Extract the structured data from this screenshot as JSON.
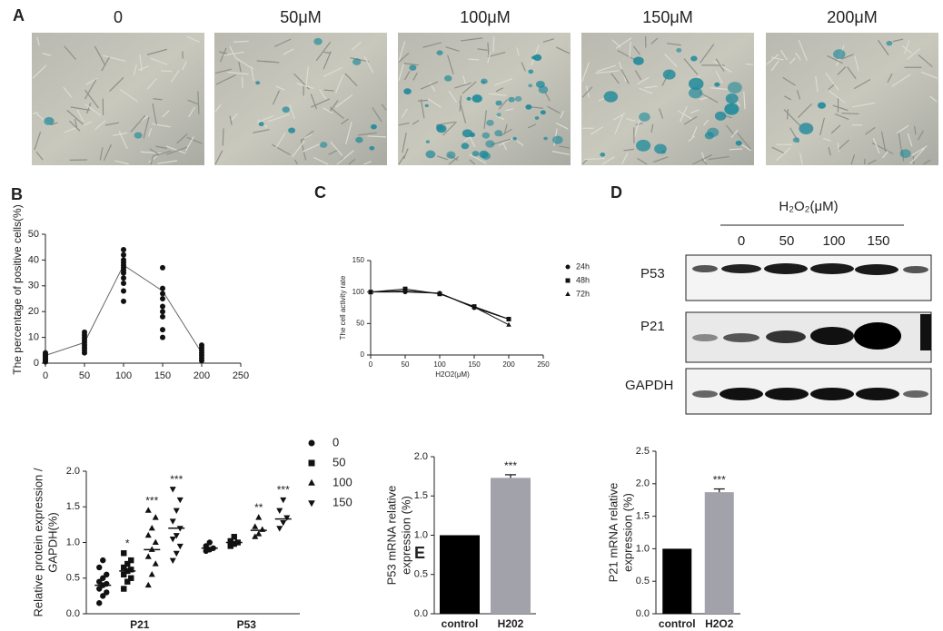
{
  "panel_letters": [
    "A",
    "B",
    "C",
    "D",
    "E"
  ],
  "micrographs": {
    "labels": [
      "0",
      "50μM",
      "100μM",
      "150μM",
      "200μM"
    ]
  },
  "western_blot": {
    "title": "H₂O₂(μM)",
    "lanes": [
      "0",
      "50",
      "100",
      "150"
    ],
    "rows": [
      "P53",
      "P21",
      "GAPDH"
    ]
  },
  "chart_data": [
    {
      "type": "scatter",
      "ylabel": "The percentage of positive cells(%)",
      "xlim": [
        0,
        250
      ],
      "ylim": [
        0,
        50
      ],
      "xticks": [
        0,
        50,
        100,
        150,
        200,
        250
      ],
      "yticks": [
        0,
        10,
        20,
        30,
        40,
        50
      ],
      "color": "#111111",
      "x": [
        0,
        0,
        0,
        0,
        0,
        0,
        0,
        0,
        50,
        50,
        50,
        50,
        50,
        50,
        50,
        50,
        50,
        100,
        100,
        100,
        100,
        100,
        100,
        100,
        100,
        100,
        100,
        100,
        100,
        150,
        150,
        150,
        150,
        150,
        150,
        150,
        150,
        150,
        200,
        200,
        200,
        200,
        200,
        200,
        200
      ],
      "values": [
        0.5,
        1,
        1.5,
        2,
        2.5,
        3,
        3.5,
        4,
        4,
        5,
        6,
        7,
        8,
        9,
        10,
        11,
        12,
        24,
        28,
        31,
        33,
        35,
        36,
        37,
        38,
        39,
        40,
        42,
        44,
        10,
        13,
        18,
        20,
        22,
        25,
        27,
        29,
        37,
        1,
        2,
        3,
        4,
        5,
        6,
        7
      ],
      "mean_line": {
        "x": [
          0,
          50,
          100,
          150,
          200
        ],
        "values": [
          3,
          8,
          38,
          28,
          4
        ],
        "color": "#666666"
      }
    },
    {
      "type": "line",
      "ylabel": "The cell activity rate",
      "xlabel": "H2O2(μM)",
      "xlim": [
        0,
        250
      ],
      "ylim": [
        0,
        150
      ],
      "xticks": [
        0,
        50,
        100,
        150,
        200,
        250
      ],
      "yticks": [
        0,
        50,
        100,
        150
      ],
      "x": [
        0,
        50,
        100,
        150,
        200
      ],
      "series": [
        {
          "name": "24h",
          "marker": "circle",
          "color": "#111111",
          "values": [
            100,
            100,
            98,
            75,
            57
          ]
        },
        {
          "name": "48h",
          "marker": "square",
          "color": "#111111",
          "values": [
            100,
            105,
            97,
            77,
            57
          ]
        },
        {
          "name": "72h",
          "marker": "triangle",
          "color": "#111111",
          "values": [
            100,
            102,
            98,
            76,
            48
          ]
        }
      ]
    },
    {
      "type": "strip",
      "ylabel": [
        "Relative protein expression /",
        "GAPDH(%)"
      ],
      "ylim": [
        0,
        2.0
      ],
      "yticks": [
        {
          "value": 0,
          "label": "0.0"
        },
        0.5,
        {
          "value": 1,
          "label": "1.0"
        },
        1.5,
        {
          "value": 2,
          "label": "2.0"
        }
      ],
      "categories": [
        "P21",
        "P53"
      ],
      "series": [
        {
          "name": "0",
          "marker": "circle",
          "color": "#111111",
          "values": [
            [
              0.15,
              0.25,
              0.3,
              0.35,
              0.4,
              0.42,
              0.45,
              0.5,
              0.55,
              0.65,
              0.75
            ],
            [
              0.88,
              0.9,
              0.92,
              0.95,
              1.0
            ]
          ],
          "means": [
            0.4,
            0.92
          ],
          "annotations": [
            null,
            null
          ]
        },
        {
          "name": "50",
          "marker": "square",
          "color": "#111111",
          "values": [
            [
              0.35,
              0.45,
              0.5,
              0.55,
              0.6,
              0.62,
              0.65,
              0.7,
              0.75,
              0.85
            ],
            [
              0.95,
              0.98,
              1.0,
              1.02,
              1.08
            ]
          ],
          "means": [
            0.6,
            1.0
          ],
          "annotations": [
            "*",
            null
          ]
        },
        {
          "name": "100",
          "marker": "triangle",
          "color": "#111111",
          "values": [
            [
              0.4,
              0.55,
              0.7,
              0.8,
              0.9,
              1.0,
              1.1,
              1.2,
              1.35,
              1.45
            ],
            [
              1.08,
              1.12,
              1.18,
              1.22,
              1.35
            ]
          ],
          "means": [
            0.9,
            1.17
          ],
          "annotations": [
            "***",
            "**"
          ]
        },
        {
          "name": "150",
          "marker": "triangle-down",
          "color": "#111111",
          "values": [
            [
              0.75,
              0.85,
              0.95,
              1.05,
              1.1,
              1.2,
              1.3,
              1.45,
              1.6,
              1.75
            ],
            [
              1.2,
              1.28,
              1.35,
              1.45,
              1.6
            ]
          ],
          "means": [
            1.2,
            1.33
          ],
          "annotations": [
            "***",
            "***"
          ]
        }
      ]
    },
    {
      "type": "bar",
      "ylabel": [
        "P53 mRNA relative",
        "expression (%)"
      ],
      "ylim": [
        0,
        2.0
      ],
      "yticks": [
        {
          "value": 0,
          "label": "0.0"
        },
        0.5,
        {
          "value": 1,
          "label": "1.0"
        },
        1.5,
        {
          "value": 2,
          "label": "2.0"
        }
      ],
      "categories": [
        "control",
        "H202"
      ],
      "values": [
        1.0,
        1.73
      ],
      "errors": [
        0,
        0.04
      ],
      "colors": [
        "#000000",
        "#a2a2aa"
      ],
      "annotations": [
        null,
        "***"
      ]
    },
    {
      "type": "bar",
      "ylabel": [
        "P21 mRNA relative",
        "expression (%)"
      ],
      "ylim": [
        0,
        2.5
      ],
      "yticks": [
        {
          "value": 0,
          "label": "0.0"
        },
        0.5,
        {
          "value": 1,
          "label": "1.0"
        },
        1.5,
        {
          "value": 2,
          "label": "2.0"
        },
        2.5
      ],
      "categories": [
        "control",
        "H2O2"
      ],
      "values": [
        1.0,
        1.87
      ],
      "errors": [
        0,
        0.05
      ],
      "colors": [
        "#000000",
        "#a2a2aa"
      ],
      "annotations": [
        null,
        "***"
      ]
    }
  ]
}
